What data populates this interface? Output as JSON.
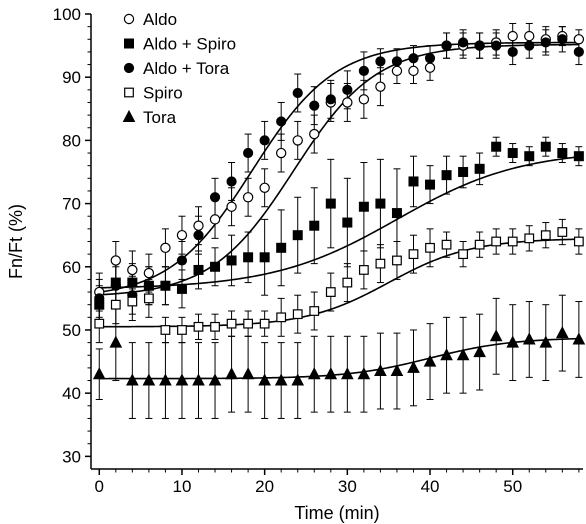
{
  "chart_data": {
    "type": "scatter",
    "xlabel": "Time (min)",
    "ylabel": "Fn/Ft (%)",
    "xlim": [
      -1,
      58.5
    ],
    "ylim": [
      28,
      100
    ],
    "xticks": [
      0,
      10,
      20,
      30,
      40,
      50
    ],
    "yticks": [
      30,
      40,
      50,
      60,
      70,
      80,
      90,
      100
    ],
    "legend_position": "top-left",
    "fit_curves": true,
    "series": [
      {
        "name": "Aldo",
        "marker": "circle-open",
        "fit": {
          "base": 55.2,
          "top": 95.2,
          "mid": 23.5,
          "scale": 5.0
        },
        "points": [
          {
            "x": 0,
            "y": 56,
            "err": 3
          },
          {
            "x": 2,
            "y": 61,
            "err": 3
          },
          {
            "x": 4,
            "y": 59.5,
            "err": 3
          },
          {
            "x": 6,
            "y": 59,
            "err": 3
          },
          {
            "x": 8,
            "y": 63,
            "err": 3
          },
          {
            "x": 10,
            "y": 65,
            "err": 3
          },
          {
            "x": 12,
            "y": 66.5,
            "err": 3
          },
          {
            "x": 14,
            "y": 67.5,
            "err": 3
          },
          {
            "x": 16,
            "y": 69.5,
            "err": 3
          },
          {
            "x": 18,
            "y": 71,
            "err": 3
          },
          {
            "x": 20,
            "y": 72.5,
            "err": 3
          },
          {
            "x": 22,
            "y": 78,
            "err": 3
          },
          {
            "x": 24,
            "y": 80,
            "err": 3
          },
          {
            "x": 26,
            "y": 81,
            "err": 3
          },
          {
            "x": 28,
            "y": 86,
            "err": 3
          },
          {
            "x": 30,
            "y": 86,
            "err": 3
          },
          {
            "x": 32,
            "y": 86.5,
            "err": 3
          },
          {
            "x": 34,
            "y": 88.5,
            "err": 3
          },
          {
            "x": 36,
            "y": 91,
            "err": 2
          },
          {
            "x": 38,
            "y": 91,
            "err": 2
          },
          {
            "x": 40,
            "y": 91.5,
            "err": 2
          },
          {
            "x": 42,
            "y": 95,
            "err": 2
          },
          {
            "x": 44,
            "y": 95,
            "err": 2
          },
          {
            "x": 46,
            "y": 95,
            "err": 2
          },
          {
            "x": 48,
            "y": 95.5,
            "err": 2
          },
          {
            "x": 50,
            "y": 96.5,
            "err": 2
          },
          {
            "x": 52,
            "y": 96.5,
            "err": 2
          },
          {
            "x": 54,
            "y": 96,
            "err": 2
          },
          {
            "x": 56,
            "y": 96.5,
            "err": 1.5
          },
          {
            "x": 58,
            "y": 96,
            "err": 1.5
          }
        ]
      },
      {
        "name": "Aldo + Spiro",
        "marker": "square-filled",
        "fit": {
          "base": 56.5,
          "top": 78.5,
          "mid": 36.0,
          "scale": 7.5
        },
        "points": [
          {
            "x": 0,
            "y": 54,
            "err": 3
          },
          {
            "x": 2,
            "y": 57.5,
            "err": 3
          },
          {
            "x": 4,
            "y": 57.5,
            "err": 3
          },
          {
            "x": 6,
            "y": 57,
            "err": 3
          },
          {
            "x": 8,
            "y": 57,
            "err": 3
          },
          {
            "x": 10,
            "y": 56.5,
            "err": 3
          },
          {
            "x": 12,
            "y": 59.5,
            "err": 3
          },
          {
            "x": 14,
            "y": 60,
            "err": 3
          },
          {
            "x": 16,
            "y": 61,
            "err": 4
          },
          {
            "x": 18,
            "y": 61.5,
            "err": 4
          },
          {
            "x": 20,
            "y": 61.5,
            "err": 6
          },
          {
            "x": 22,
            "y": 63,
            "err": 6
          },
          {
            "x": 24,
            "y": 65,
            "err": 6
          },
          {
            "x": 26,
            "y": 66.5,
            "err": 6
          },
          {
            "x": 28,
            "y": 70,
            "err": 7
          },
          {
            "x": 30,
            "y": 67,
            "err": 7
          },
          {
            "x": 32,
            "y": 69.5,
            "err": 7
          },
          {
            "x": 34,
            "y": 70,
            "err": 7
          },
          {
            "x": 36,
            "y": 68.5,
            "err": 7
          },
          {
            "x": 38,
            "y": 73.5,
            "err": 4
          },
          {
            "x": 40,
            "y": 73,
            "err": 3
          },
          {
            "x": 42,
            "y": 74.5,
            "err": 3
          },
          {
            "x": 44,
            "y": 75,
            "err": 2.5
          },
          {
            "x": 46,
            "y": 75.5,
            "err": 2.5
          },
          {
            "x": 48,
            "y": 79,
            "err": 1.5
          },
          {
            "x": 50,
            "y": 78,
            "err": 1.5
          },
          {
            "x": 52,
            "y": 77.5,
            "err": 1.5
          },
          {
            "x": 54,
            "y": 79,
            "err": 1.5
          },
          {
            "x": 56,
            "y": 78,
            "err": 1.5
          },
          {
            "x": 58,
            "y": 77.5,
            "err": 1.5
          }
        ]
      },
      {
        "name": "Aldo + Tora",
        "marker": "circle-filled",
        "fit": {
          "base": 55.0,
          "top": 95.5,
          "mid": 18.5,
          "scale": 5.0
        },
        "points": [
          {
            "x": 0,
            "y": 55,
            "err": 3
          },
          {
            "x": 2,
            "y": 57,
            "err": 3
          },
          {
            "x": 4,
            "y": 55.5,
            "err": 3
          },
          {
            "x": 6,
            "y": 57,
            "err": 3
          },
          {
            "x": 8,
            "y": 57,
            "err": 3
          },
          {
            "x": 10,
            "y": 61,
            "err": 3
          },
          {
            "x": 12,
            "y": 65,
            "err": 3
          },
          {
            "x": 14,
            "y": 71,
            "err": 3
          },
          {
            "x": 16,
            "y": 73.5,
            "err": 3
          },
          {
            "x": 18,
            "y": 78,
            "err": 3
          },
          {
            "x": 20,
            "y": 80,
            "err": 3
          },
          {
            "x": 22,
            "y": 83,
            "err": 3
          },
          {
            "x": 24,
            "y": 87.5,
            "err": 3
          },
          {
            "x": 26,
            "y": 85.5,
            "err": 3
          },
          {
            "x": 28,
            "y": 86.5,
            "err": 3
          },
          {
            "x": 30,
            "y": 88,
            "err": 3
          },
          {
            "x": 32,
            "y": 91,
            "err": 3
          },
          {
            "x": 34,
            "y": 92.5,
            "err": 2
          },
          {
            "x": 36,
            "y": 92.5,
            "err": 2
          },
          {
            "x": 38,
            "y": 93,
            "err": 2
          },
          {
            "x": 40,
            "y": 93,
            "err": 2
          },
          {
            "x": 42,
            "y": 95,
            "err": 2
          },
          {
            "x": 44,
            "y": 95.5,
            "err": 2
          },
          {
            "x": 46,
            "y": 95,
            "err": 2
          },
          {
            "x": 48,
            "y": 95,
            "err": 2
          },
          {
            "x": 50,
            "y": 94,
            "err": 2
          },
          {
            "x": 52,
            "y": 95,
            "err": 2
          },
          {
            "x": 54,
            "y": 95.5,
            "err": 2
          },
          {
            "x": 56,
            "y": 96,
            "err": 2
          },
          {
            "x": 58,
            "y": 94,
            "err": 2
          }
        ]
      },
      {
        "name": "Spiro",
        "marker": "square-open",
        "fit": {
          "base": 50.5,
          "top": 64.5,
          "mid": 35.0,
          "scale": 5.0
        },
        "points": [
          {
            "x": 0,
            "y": 51,
            "err": 3
          },
          {
            "x": 2,
            "y": 54,
            "err": 3
          },
          {
            "x": 4,
            "y": 54.5,
            "err": 3
          },
          {
            "x": 6,
            "y": 55,
            "err": 3
          },
          {
            "x": 8,
            "y": 50,
            "err": 2
          },
          {
            "x": 10,
            "y": 50,
            "err": 2
          },
          {
            "x": 12,
            "y": 50.5,
            "err": 2
          },
          {
            "x": 14,
            "y": 50.5,
            "err": 2
          },
          {
            "x": 16,
            "y": 51,
            "err": 2
          },
          {
            "x": 18,
            "y": 51,
            "err": 2
          },
          {
            "x": 20,
            "y": 51,
            "err": 2
          },
          {
            "x": 22,
            "y": 52,
            "err": 3
          },
          {
            "x": 24,
            "y": 52.5,
            "err": 3
          },
          {
            "x": 26,
            "y": 53,
            "err": 3
          },
          {
            "x": 28,
            "y": 56,
            "err": 3
          },
          {
            "x": 30,
            "y": 57.5,
            "err": 3
          },
          {
            "x": 32,
            "y": 59.5,
            "err": 3
          },
          {
            "x": 34,
            "y": 60.5,
            "err": 3
          },
          {
            "x": 36,
            "y": 61,
            "err": 3
          },
          {
            "x": 38,
            "y": 62,
            "err": 3
          },
          {
            "x": 40,
            "y": 63,
            "err": 3
          },
          {
            "x": 42,
            "y": 63.5,
            "err": 2
          },
          {
            "x": 44,
            "y": 62,
            "err": 2
          },
          {
            "x": 46,
            "y": 63.5,
            "err": 2
          },
          {
            "x": 48,
            "y": 64,
            "err": 2
          },
          {
            "x": 50,
            "y": 64,
            "err": 2
          },
          {
            "x": 52,
            "y": 64.5,
            "err": 2
          },
          {
            "x": 54,
            "y": 65,
            "err": 2
          },
          {
            "x": 56,
            "y": 65.5,
            "err": 2
          },
          {
            "x": 58,
            "y": 64,
            "err": 2
          }
        ]
      },
      {
        "name": "Tora",
        "marker": "triangle-filled",
        "fit": {
          "base": 42.3,
          "top": 48.8,
          "mid": 40.0,
          "scale": 5.0
        },
        "points": [
          {
            "x": 0,
            "y": 43,
            "err": 4
          },
          {
            "x": 2,
            "y": 48,
            "err": 6
          },
          {
            "x": 4,
            "y": 42,
            "err": 6
          },
          {
            "x": 6,
            "y": 42,
            "err": 6
          },
          {
            "x": 8,
            "y": 42,
            "err": 6
          },
          {
            "x": 10,
            "y": 42,
            "err": 6
          },
          {
            "x": 12,
            "y": 42,
            "err": 6
          },
          {
            "x": 14,
            "y": 42,
            "err": 6
          },
          {
            "x": 16,
            "y": 43,
            "err": 6
          },
          {
            "x": 18,
            "y": 43,
            "err": 6
          },
          {
            "x": 20,
            "y": 42,
            "err": 6
          },
          {
            "x": 22,
            "y": 42,
            "err": 6
          },
          {
            "x": 24,
            "y": 42,
            "err": 6
          },
          {
            "x": 26,
            "y": 43,
            "err": 6
          },
          {
            "x": 28,
            "y": 43,
            "err": 6
          },
          {
            "x": 30,
            "y": 43,
            "err": 6
          },
          {
            "x": 32,
            "y": 43,
            "err": 6
          },
          {
            "x": 34,
            "y": 43.5,
            "err": 6
          },
          {
            "x": 36,
            "y": 43.5,
            "err": 6
          },
          {
            "x": 38,
            "y": 44,
            "err": 6
          },
          {
            "x": 40,
            "y": 45,
            "err": 6
          },
          {
            "x": 42,
            "y": 46,
            "err": 6
          },
          {
            "x": 44,
            "y": 46,
            "err": 6
          },
          {
            "x": 46,
            "y": 46.5,
            "err": 6
          },
          {
            "x": 48,
            "y": 49,
            "err": 6
          },
          {
            "x": 50,
            "y": 48,
            "err": 6
          },
          {
            "x": 52,
            "y": 48.5,
            "err": 6
          },
          {
            "x": 54,
            "y": 48,
            "err": 6
          },
          {
            "x": 56,
            "y": 49.5,
            "err": 6
          },
          {
            "x": 58,
            "y": 48.5,
            "err": 6
          }
        ]
      }
    ]
  }
}
